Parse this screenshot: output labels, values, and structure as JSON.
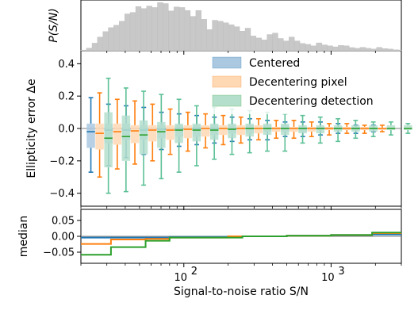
{
  "chart_data": [
    {
      "panel": "top",
      "type": "bar",
      "ylabel": "P(S/N)",
      "xscale": "log",
      "xlim": [
        20,
        3000
      ],
      "color": "#c8c8c8",
      "bins": [
        [
          20.0,
          1.4
        ],
        [
          21.8,
          5.4
        ],
        [
          23.8,
          15.5
        ],
        [
          25.9,
          28.0
        ],
        [
          28.2,
          39.0
        ],
        [
          30.7,
          47.0
        ],
        [
          33.4,
          52.0
        ],
        [
          36.4,
          60.0
        ],
        [
          39.7,
          75.0
        ],
        [
          43.2,
          78.0
        ],
        [
          47.1,
          90.0
        ],
        [
          51.3,
          86.0
        ],
        [
          55.8,
          91.0
        ],
        [
          60.8,
          88.0
        ],
        [
          66.2,
          98.0
        ],
        [
          72.2,
          96.0
        ],
        [
          78.6,
          81.0
        ],
        [
          85.6,
          89.0
        ],
        [
          93.3,
          88.0
        ],
        [
          101.6,
          82.0
        ],
        [
          110.7,
          70.0
        ],
        [
          120.6,
          82.0
        ],
        [
          131.4,
          64.0
        ],
        [
          143.1,
          43.0
        ],
        [
          155.9,
          62.0
        ],
        [
          169.9,
          60.0
        ],
        [
          185.1,
          57.0
        ],
        [
          201.6,
          53.0
        ],
        [
          219.6,
          49.0
        ],
        [
          239.3,
          40.0
        ],
        [
          260.7,
          46.0
        ],
        [
          284.0,
          30.0
        ],
        [
          309.4,
          26.0
        ],
        [
          337.1,
          22.0
        ],
        [
          367.2,
          33.0
        ],
        [
          400.0,
          36.0
        ],
        [
          435.8,
          25.0
        ],
        [
          474.7,
          20.0
        ],
        [
          517.2,
          28.0
        ],
        [
          563.4,
          20.0
        ],
        [
          613.8,
          15.0
        ],
        [
          668.7,
          13.0
        ],
        [
          728.5,
          10.0
        ],
        [
          793.6,
          16.0
        ],
        [
          864.6,
          12.0
        ],
        [
          941.9,
          10.0
        ],
        [
          1026.1,
          8.0
        ],
        [
          1117.9,
          11.0
        ],
        [
          1217.8,
          10.0
        ],
        [
          1326.7,
          6.5
        ],
        [
          1445.3,
          5.0
        ],
        [
          1574.6,
          7.0
        ],
        [
          1715.4,
          5.0
        ],
        [
          1868.7,
          3.5
        ],
        [
          2035.8,
          7.0
        ],
        [
          2217.9,
          4.5
        ],
        [
          2416.2,
          3.5
        ],
        [
          2632.2,
          2.0
        ],
        [
          2867.6,
          1.5
        ]
      ]
    },
    {
      "panel": "middle",
      "type": "box",
      "ylabel": "Ellipticity error Δe",
      "xscale": "log",
      "xlim": [
        20,
        3000
      ],
      "ylim": [
        -0.48,
        0.48
      ],
      "yticks": [
        0.4,
        0.2,
        0.0,
        -0.2,
        -0.4
      ],
      "ytick_labels": [
        "0.4",
        "0.2",
        "0.0",
        "−0.2",
        "−0.4"
      ],
      "legend_position": "top-right",
      "series": [
        {
          "name": "Centered",
          "color": "#1f77b4",
          "box_color": "#aac8e0",
          "boxes": [
            [
              26.8,
              -0.27,
              -0.12,
              -0.02,
              0.03,
              0.19
            ],
            [
              35.3,
              -0.23,
              -0.09,
              -0.01,
              0.03,
              0.15
            ],
            [
              46.5,
              -0.18,
              -0.07,
              -0.01,
              0.03,
              0.14
            ],
            [
              61.3,
              -0.16,
              -0.07,
              -0.01,
              0.02,
              0.13
            ],
            [
              80.8,
              -0.13,
              -0.06,
              -0.005,
              0.02,
              0.1
            ],
            [
              106.5,
              -0.11,
              -0.05,
              0.0,
              0.02,
              0.09
            ],
            [
              140.4,
              -0.1,
              -0.05,
              0.0,
              0.02,
              0.08
            ],
            [
              185.1,
              -0.09,
              -0.04,
              0.0,
              0.02,
              0.07
            ],
            [
              244.0,
              -0.08,
              -0.03,
              0.0,
              0.02,
              0.07
            ],
            [
              321.6,
              -0.07,
              -0.03,
              0.0,
              0.02,
              0.06
            ],
            [
              424.0,
              -0.07,
              -0.02,
              0.0,
              0.02,
              0.05
            ],
            [
              558.9,
              -0.05,
              -0.02,
              0.0,
              0.02,
              0.04
            ],
            [
              736.7,
              -0.05,
              -0.02,
              0.0,
              0.01,
              0.04
            ],
            [
              971.2,
              -0.04,
              -0.01,
              0.0,
              0.01,
              0.04
            ],
            [
              1280.0,
              -0.03,
              -0.01,
              0.0,
              0.01,
              0.03
            ],
            [
              1687.6,
              -0.03,
              -0.01,
              0.0,
              0.01,
              0.02
            ],
            [
              2224.0,
              -0.02,
              -0.005,
              0.0,
              0.005,
              0.02
            ]
          ]
        },
        {
          "name": "Decentering pixel",
          "color": "#ff7f0e",
          "box_color": "#ffd8b4",
          "boxes": [
            [
              26.8,
              -0.3,
              -0.13,
              -0.03,
              0.03,
              0.22
            ],
            [
              35.3,
              -0.25,
              -0.1,
              -0.02,
              0.03,
              0.18
            ],
            [
              46.5,
              -0.22,
              -0.09,
              -0.015,
              0.02,
              0.17
            ],
            [
              61.3,
              -0.2,
              -0.08,
              -0.01,
              0.02,
              0.15
            ],
            [
              80.8,
              -0.16,
              -0.07,
              -0.01,
              0.02,
              0.12
            ],
            [
              106.5,
              -0.14,
              -0.06,
              -0.005,
              0.02,
              0.1
            ],
            [
              140.4,
              -0.12,
              -0.05,
              0.0,
              0.02,
              0.09
            ],
            [
              185.1,
              -0.1,
              -0.04,
              0.0,
              0.02,
              0.08
            ],
            [
              244.0,
              -0.09,
              -0.04,
              0.0,
              0.02,
              0.07
            ],
            [
              321.6,
              -0.07,
              -0.03,
              0.0,
              0.02,
              0.06
            ],
            [
              424.0,
              -0.06,
              -0.02,
              0.0,
              0.01,
              0.05
            ],
            [
              558.9,
              -0.06,
              -0.02,
              0.0,
              0.01,
              0.05
            ],
            [
              736.7,
              -0.05,
              -0.02,
              0.0,
              0.01,
              0.04
            ],
            [
              971.2,
              -0.04,
              -0.01,
              0.0,
              0.01,
              0.03
            ],
            [
              1280.0,
              -0.03,
              -0.01,
              0.0,
              0.01,
              0.03
            ],
            [
              1687.6,
              -0.03,
              -0.01,
              0.0,
              0.01,
              0.02
            ],
            [
              2224.0,
              -0.02,
              -0.01,
              0.0,
              0.005,
              0.02
            ]
          ]
        },
        {
          "name": "Decentering detection",
          "color": "#2ca02c",
          "box_color": "#b5dfcd",
          "whisker_color": "#5cc096",
          "boxes": [
            [
              26.8,
              -0.4,
              -0.24,
              -0.06,
              0.1,
              0.31
            ],
            [
              35.3,
              -0.39,
              -0.2,
              -0.05,
              0.08,
              0.25
            ],
            [
              46.5,
              -0.35,
              -0.16,
              -0.04,
              0.05,
              0.23
            ],
            [
              61.3,
              -0.31,
              -0.12,
              -0.02,
              0.04,
              0.21
            ],
            [
              80.8,
              -0.27,
              -0.09,
              -0.01,
              0.03,
              0.18
            ],
            [
              106.5,
              -0.23,
              -0.08,
              -0.01,
              0.03,
              0.14
            ],
            [
              140.4,
              -0.19,
              -0.07,
              -0.01,
              0.03,
              0.13
            ],
            [
              185.1,
              -0.16,
              -0.06,
              -0.005,
              0.03,
              0.12
            ],
            [
              244.0,
              -0.15,
              -0.05,
              0.0,
              0.03,
              0.11
            ],
            [
              321.6,
              -0.14,
              -0.04,
              0.0,
              0.03,
              0.1
            ],
            [
              424.0,
              -0.14,
              -0.04,
              0.0,
              0.03,
              0.09
            ],
            [
              558.9,
              -0.09,
              -0.03,
              0.0,
              0.02,
              0.08
            ],
            [
              736.7,
              -0.09,
              -0.03,
              0.0,
              0.02,
              0.07
            ],
            [
              971.2,
              -0.08,
              -0.02,
              0.0,
              0.02,
              0.06
            ],
            [
              1280.0,
              -0.06,
              -0.02,
              0.0,
              0.02,
              0.05
            ],
            [
              1687.6,
              -0.05,
              -0.02,
              0.0,
              0.02,
              0.04
            ],
            [
              2224.0,
              -0.04,
              -0.01,
              0.0,
              0.02,
              0.04
            ],
            [
              2900.0,
              -0.03,
              -0.01,
              0.0,
              0.02,
              0.03
            ]
          ]
        }
      ]
    },
    {
      "panel": "bottom",
      "type": "line",
      "ylabel": "median",
      "xlabel": "Signal-to-noise ratio S/N",
      "xscale": "log",
      "xlim": [
        20,
        3000
      ],
      "ylim": [
        -0.085,
        0.085
      ],
      "yticks": [
        0.05,
        0.0,
        -0.05
      ],
      "ytick_labels": [
        "0.05",
        "0.00",
        "−0.05"
      ],
      "xticks": [
        100,
        1000
      ],
      "xtick_labels": [
        "10",
        "10"
      ],
      "xtick_exponents": [
        "2",
        "3"
      ],
      "series": [
        {
          "name": "Centered",
          "color": "#1f77b4",
          "steps": [
            [
              20,
              -0.004
            ],
            [
              80,
              -0.002
            ],
            [
              200,
              0.0
            ],
            [
              500,
              0.002
            ],
            [
              1000,
              0.004
            ],
            [
              1900,
              0.006
            ],
            [
              3000,
              0.006
            ]
          ]
        },
        {
          "name": "Decentering pixel",
          "color": "#ff7f0e",
          "steps": [
            [
              20,
              -0.024
            ],
            [
              32,
              -0.01
            ],
            [
              55,
              -0.008
            ],
            [
              80,
              -0.004
            ],
            [
              200,
              0.0
            ],
            [
              500,
              0.002
            ],
            [
              1000,
              0.004
            ],
            [
              1900,
              0.01
            ],
            [
              3000,
              0.01
            ]
          ]
        },
        {
          "name": "Decentering detection",
          "color": "#2ca02c",
          "steps": [
            [
              20,
              -0.058
            ],
            [
              32,
              -0.034
            ],
            [
              55,
              -0.014
            ],
            [
              80,
              -0.004
            ],
            [
              250,
              0.0
            ],
            [
              500,
              0.002
            ],
            [
              1000,
              0.004
            ],
            [
              1900,
              0.012
            ],
            [
              3000,
              0.012
            ]
          ]
        }
      ]
    }
  ]
}
